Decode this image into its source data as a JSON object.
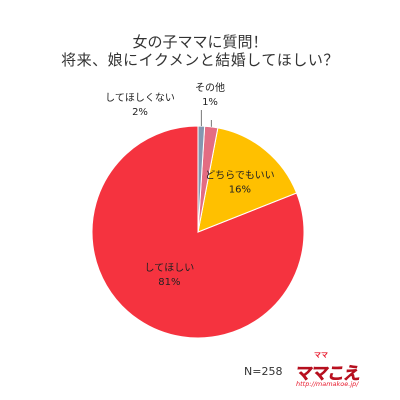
{
  "title": {
    "line1": "女の子ママに質問！",
    "line2": "将来、娘にイクメンと結婚してほしい？"
  },
  "sample_size": "N=258",
  "logo": {
    "brand_top": "ママ",
    "brand": "ママこえ",
    "url": "http://mamakoe.jp/"
  },
  "colors": {
    "してほしい": "#f5333f",
    "どちらでもいい": "#ffc000",
    "してほしくない": "#e46c82",
    "その他": "#8497b0"
  },
  "chart_data": {
    "type": "pie",
    "categories": [
      "してほしい",
      "どちらでもいい",
      "してほしくない",
      "その他"
    ],
    "values": [
      81,
      16,
      2,
      1
    ],
    "labels": [
      "81%",
      "16%",
      "2%",
      "1%"
    ],
    "title": "女の子ママに質問！ 将来、娘にイクメンと結婚してほしい？"
  }
}
